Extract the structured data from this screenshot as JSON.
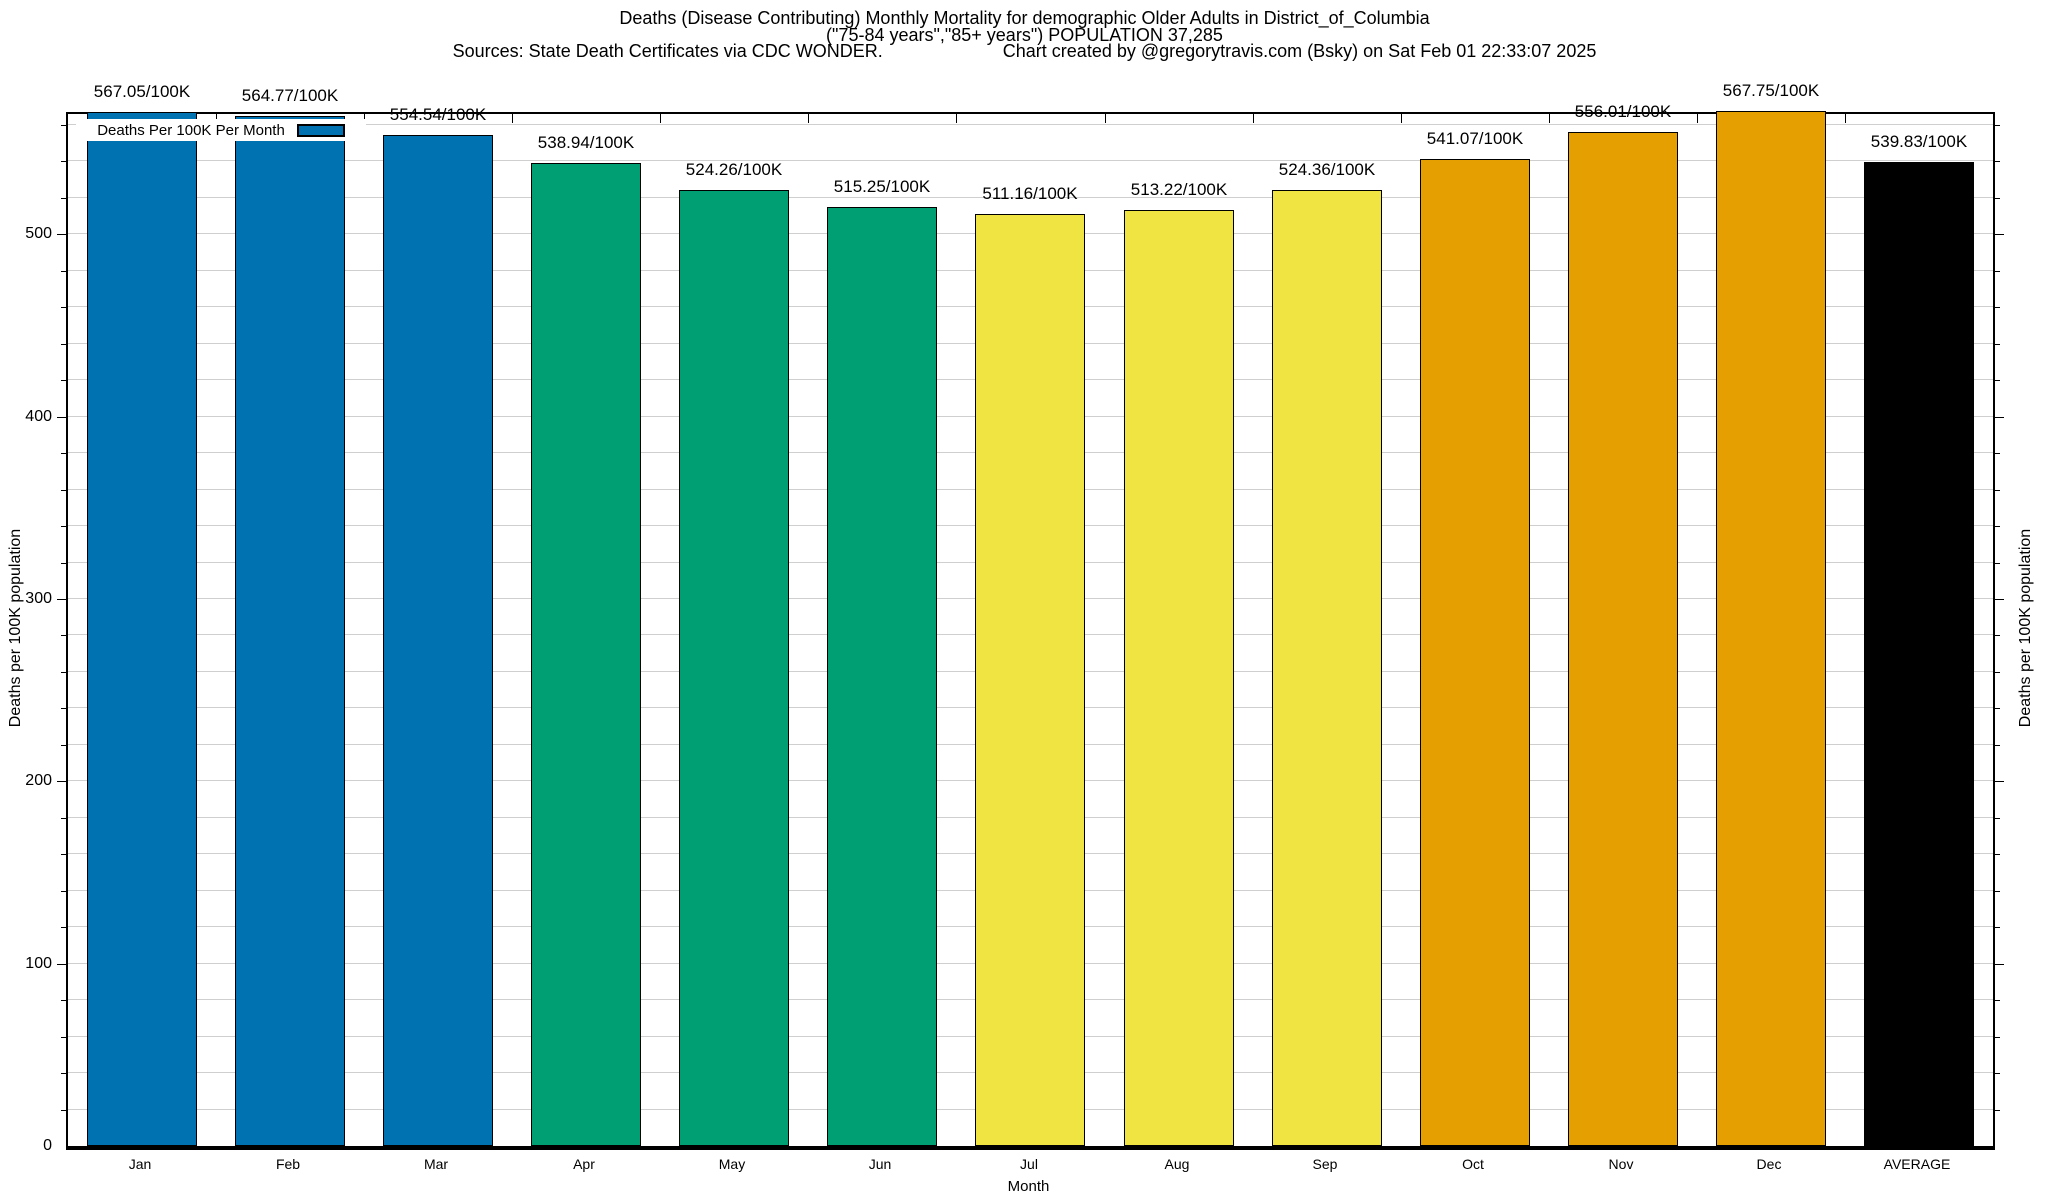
{
  "chart_data": {
    "type": "bar",
    "title_line1": "Deaths (Disease Contributing) Monthly Mortality for demographic Older Adults in District_of_Columbia",
    "title_line2": "(\"75-84 years\",\"85+ years\") POPULATION 37,285",
    "source_note": "Sources: State Death Certificates via CDC WONDER.",
    "credit_note": "Chart created by @gregorytravis.com (Bsky) on Sat Feb 01 22:33:07 2025",
    "categories": [
      "Jan",
      "Feb",
      "Mar",
      "Apr",
      "May",
      "Jun",
      "Jul",
      "Aug",
      "Sep",
      "Oct",
      "Nov",
      "Dec",
      "AVERAGE"
    ],
    "values": [
      567.05,
      564.77,
      554.54,
      538.94,
      524.26,
      515.25,
      511.16,
      513.22,
      524.36,
      541.07,
      556.01,
      567.75,
      539.83
    ],
    "bar_labels": [
      "567.05/100K",
      "564.77/100K",
      "554.54/100K",
      "538.94/100K",
      "524.26/100K",
      "515.25/100K",
      "511.16/100K",
      "513.22/100K",
      "524.36/100K",
      "541.07/100K",
      "556.01/100K",
      "567.75/100K",
      "539.83/100K"
    ],
    "bar_colors": [
      "#0072B2",
      "#0072B2",
      "#0072B2",
      "#009E73",
      "#009E73",
      "#009E73",
      "#F0E442",
      "#F0E442",
      "#F0E442",
      "#E69F00",
      "#E69F00",
      "#E69F00",
      "#000000"
    ],
    "xlabel": "Month",
    "ylabel_left": "Deaths per 100K population",
    "ylabel_right": "Deaths per 100K population",
    "ylim": [
      0,
      566
    ],
    "y_major_ticks": [
      0,
      100,
      200,
      300,
      400,
      500
    ],
    "y_minor_step": 20,
    "grid": true,
    "legend": {
      "label": "Deaths Per 100K Per Month",
      "position": "top-left",
      "swatch_color": "#0072B2"
    },
    "colors": {
      "grid": "#cfcfcf",
      "axis": "#000000",
      "background": "#ffffff"
    }
  }
}
